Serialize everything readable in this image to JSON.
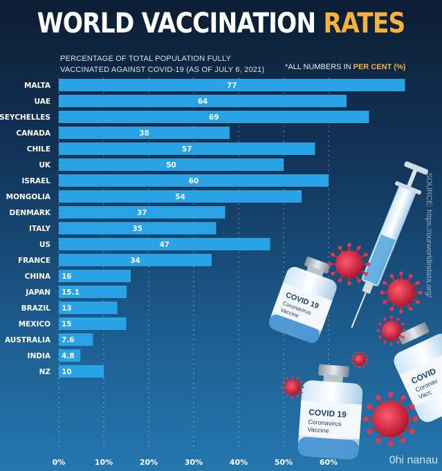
{
  "title": {
    "main": "WORLD VACCINATION",
    "accent": "RATES"
  },
  "subtitle": "PERCENTAGE OF TOTAL POPULATION FULLY VACCINATED AGAINST COVID-19 (AS OF JULY 6, 2021)",
  "note": {
    "prefix": "*ALL NUMBERS IN",
    "highlight": "PER CENT (%)"
  },
  "source": "SOURCE: https://ourworldindata.org/",
  "watermark": "0hi nanau",
  "colors": {
    "bar": "#2aa3e6",
    "accent": "#f6b23a",
    "grid": "rgba(255,255,255,0.45)"
  },
  "chart_data": {
    "type": "bar",
    "orientation": "horizontal",
    "categories": [
      "MALTA",
      "UAE",
      "SEYCHELLES",
      "CANADA",
      "CHILE",
      "UK",
      "ISRAEL",
      "MONGOLIA",
      "DENMARK",
      "ITALY",
      "US",
      "FRANCE",
      "CHINA",
      "JAPAN",
      "BRAZIL",
      "MEXICO",
      "AUSTRALIA",
      "INDIA",
      "NZ"
    ],
    "values": [
      77,
      64,
      69,
      38,
      57,
      50,
      60,
      54,
      37,
      35,
      47,
      34,
      16,
      15.1,
      13,
      15,
      7.6,
      4.8,
      10
    ],
    "value_labels": [
      "77",
      "64",
      "69",
      "38",
      "57",
      "50",
      "60",
      "54",
      "37",
      "35",
      "47",
      "34",
      "16",
      "15.1",
      "13",
      "15",
      "7.6",
      "4.8",
      "10"
    ],
    "xlim": [
      0,
      80
    ],
    "xticks": [
      "0%",
      "10%",
      "20%",
      "30%",
      "40%",
      "50%",
      "60%"
    ],
    "grid": "dashed vertical"
  }
}
